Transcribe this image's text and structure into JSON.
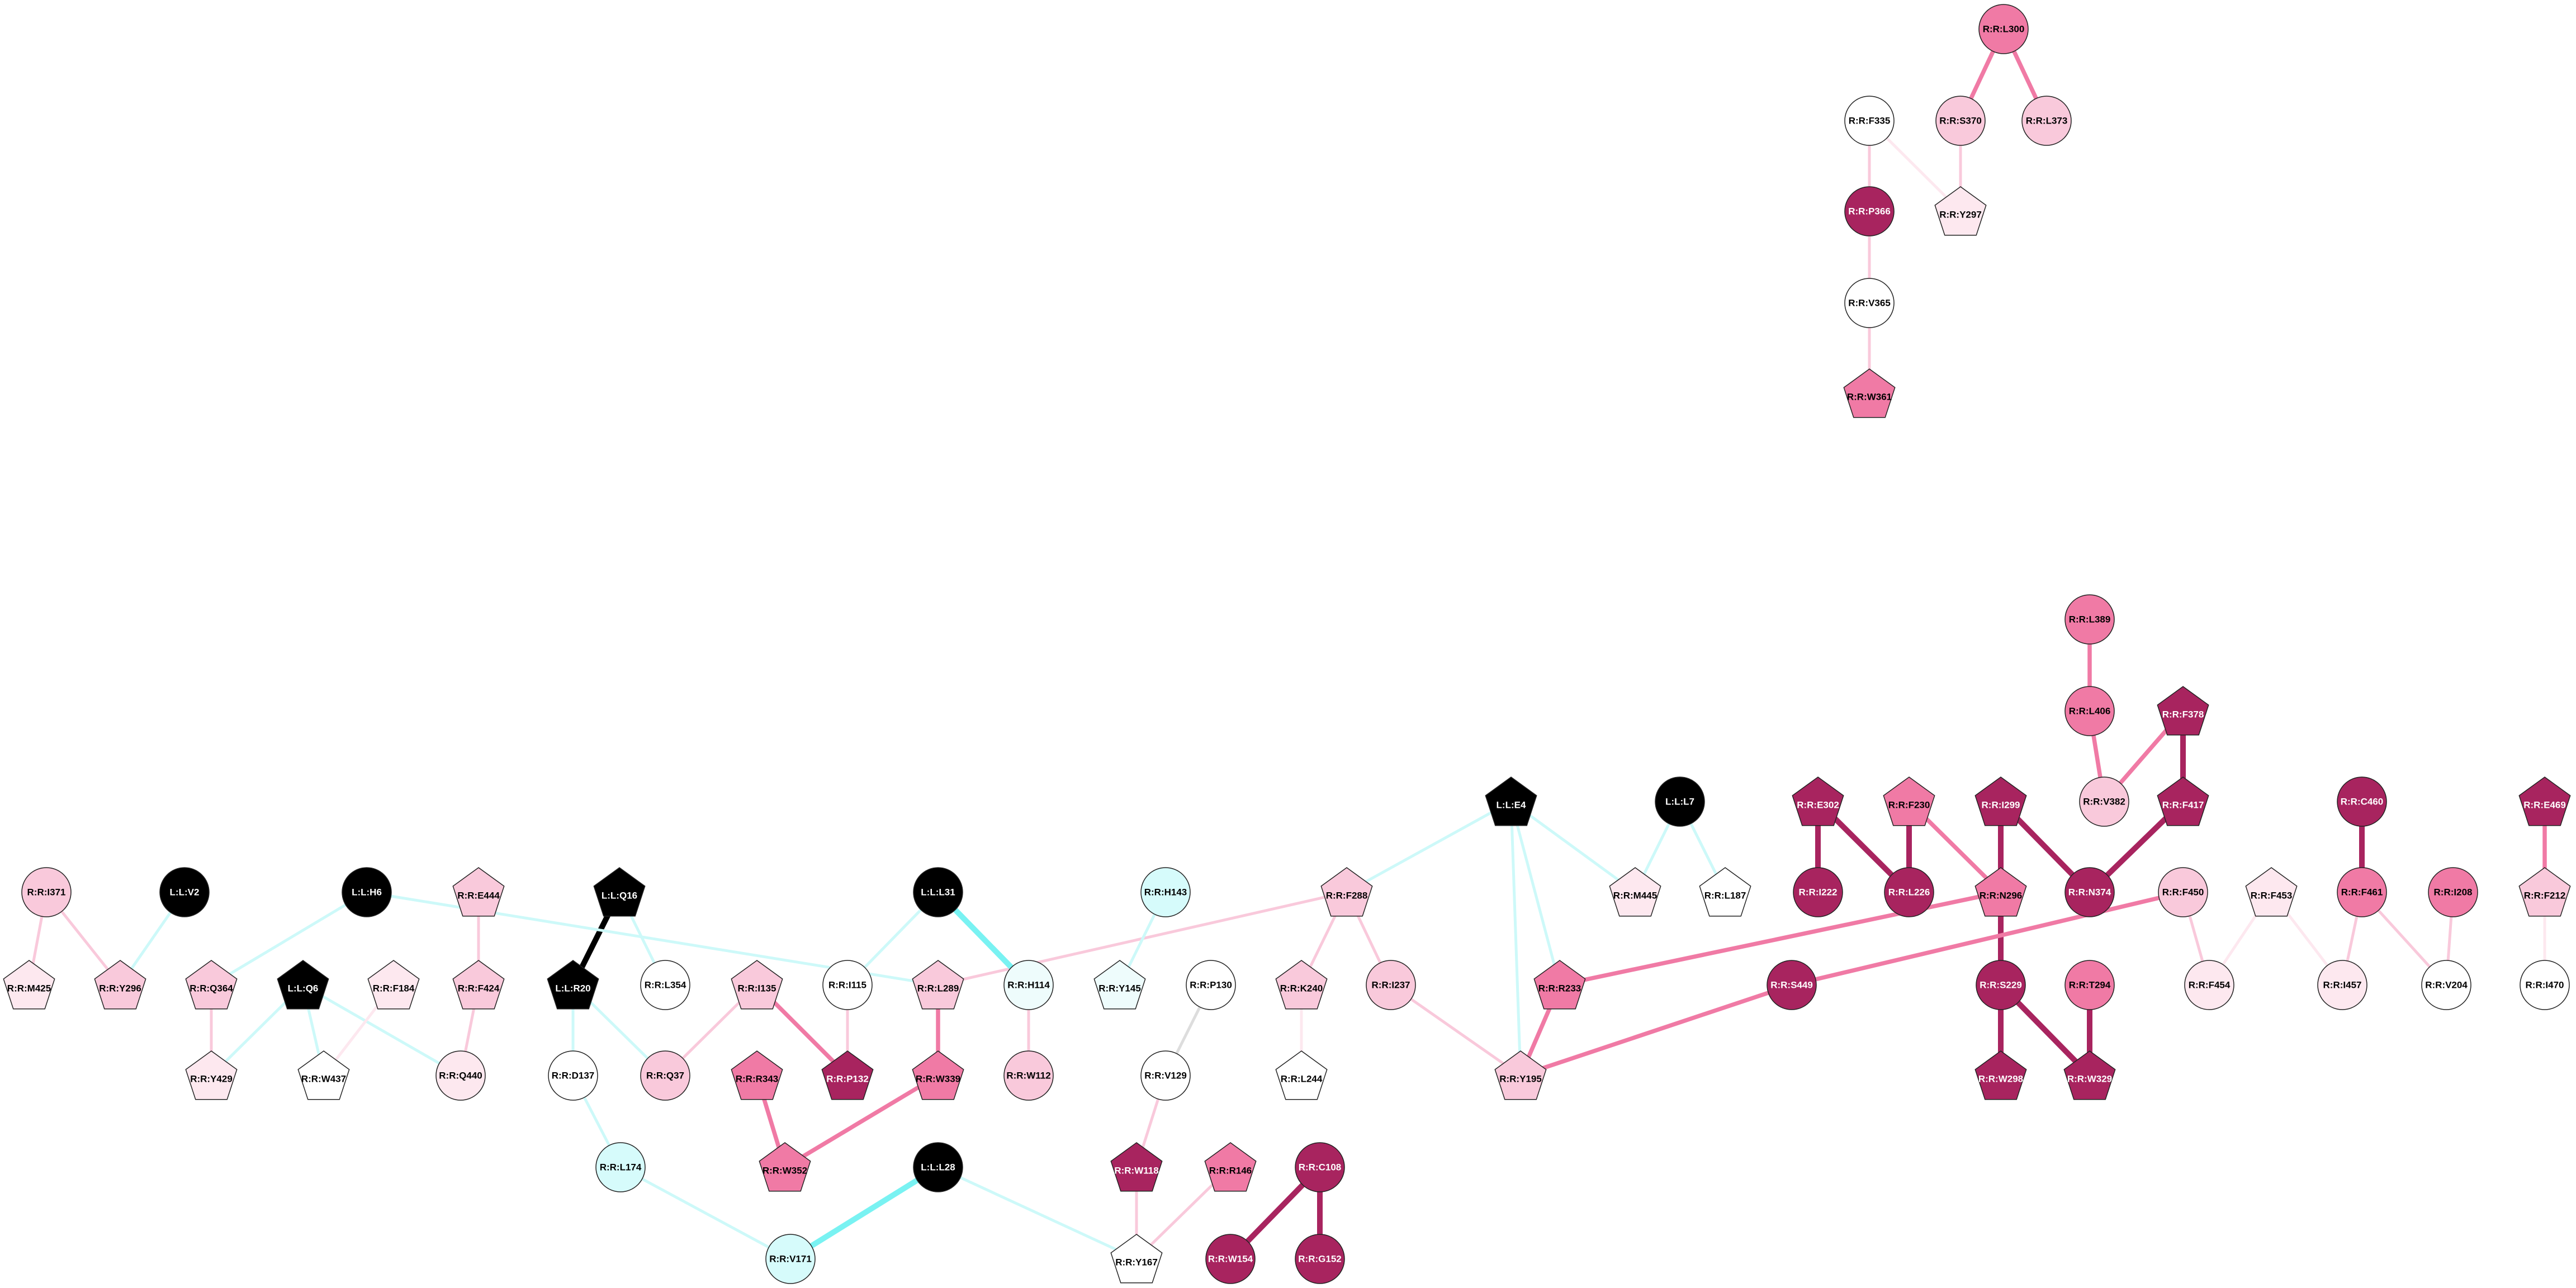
{
  "colors": {
    "black": "#000000",
    "darkmagenta": "#a8245f",
    "magenta": "#f07aa5",
    "pink": "#f9c9db",
    "lightpink": "#fde8ef",
    "white": "#ffffff",
    "cyan": "#d6fbfb",
    "lightcyan": "#eefcfc",
    "edge_cyan": "#79f2f2",
    "edge_lightcyan": "#cdf9f9",
    "edge_grey": "#dddddd"
  },
  "nodes": [
    {
      "id": "n_L300",
      "label": "R:R:L300",
      "shape": "circle",
      "fill": "magenta"
    },
    {
      "id": "n_F335",
      "label": "R:R:F335",
      "shape": "circle",
      "fill": "white"
    },
    {
      "id": "n_S370",
      "label": "R:R:S370",
      "shape": "circle",
      "fill": "pink"
    },
    {
      "id": "n_L373",
      "label": "R:R:L373",
      "shape": "circle",
      "fill": "pink"
    },
    {
      "id": "n_P366",
      "label": "R:R:P366",
      "shape": "circle",
      "fill": "darkmagenta"
    },
    {
      "id": "n_Y297",
      "label": "R:R:Y297",
      "shape": "pentagon",
      "fill": "lightpink"
    },
    {
      "id": "n_V365",
      "label": "R:R:V365",
      "shape": "circle",
      "fill": "white"
    },
    {
      "id": "n_W361",
      "label": "R:R:W361",
      "shape": "pentagon",
      "fill": "magenta"
    },
    {
      "id": "n_L389",
      "label": "R:R:L389",
      "shape": "circle",
      "fill": "magenta"
    },
    {
      "id": "n_L406",
      "label": "R:R:L406",
      "shape": "circle",
      "fill": "magenta"
    },
    {
      "id": "n_F378",
      "label": "R:R:F378",
      "shape": "pentagon",
      "fill": "darkmagenta"
    },
    {
      "id": "n_V382",
      "label": "R:R:V382",
      "shape": "circle",
      "fill": "pink"
    },
    {
      "id": "n_F417",
      "label": "R:R:F417",
      "shape": "pentagon",
      "fill": "darkmagenta"
    },
    {
      "id": "n_E4",
      "label": "L:L:E4",
      "shape": "pentagon",
      "fill": "black"
    },
    {
      "id": "n_L7",
      "label": "L:L:L7",
      "shape": "circle",
      "fill": "black"
    },
    {
      "id": "n_E302",
      "label": "R:R:E302",
      "shape": "pentagon",
      "fill": "darkmagenta"
    },
    {
      "id": "n_F230",
      "label": "R:R:F230",
      "shape": "pentagon",
      "fill": "magenta"
    },
    {
      "id": "n_I299",
      "label": "R:R:I299",
      "shape": "pentagon",
      "fill": "darkmagenta"
    },
    {
      "id": "n_C460",
      "label": "R:R:C460",
      "shape": "circle",
      "fill": "darkmagenta"
    },
    {
      "id": "n_E469",
      "label": "R:R:E469",
      "shape": "pentagon",
      "fill": "darkmagenta"
    },
    {
      "id": "n_M445",
      "label": "R:R:M445",
      "shape": "pentagon",
      "fill": "lightpink"
    },
    {
      "id": "n_L187",
      "label": "R:R:L187",
      "shape": "pentagon",
      "fill": "white"
    },
    {
      "id": "n_I222",
      "label": "R:R:I222",
      "shape": "circle",
      "fill": "darkmagenta"
    },
    {
      "id": "n_L226",
      "label": "R:R:L226",
      "shape": "circle",
      "fill": "darkmagenta"
    },
    {
      "id": "n_N296",
      "label": "R:R:N296",
      "shape": "pentagon",
      "fill": "magenta"
    },
    {
      "id": "n_N374",
      "label": "R:R:N374",
      "shape": "circle",
      "fill": "darkmagenta"
    },
    {
      "id": "n_F450",
      "label": "R:R:F450",
      "shape": "circle",
      "fill": "pink"
    },
    {
      "id": "n_F453",
      "label": "R:R:F453",
      "shape": "pentagon",
      "fill": "lightpink"
    },
    {
      "id": "n_F461",
      "label": "R:R:F461",
      "shape": "circle",
      "fill": "magenta"
    },
    {
      "id": "n_I208",
      "label": "R:R:I208",
      "shape": "circle",
      "fill": "magenta"
    },
    {
      "id": "n_F212",
      "label": "R:R:F212",
      "shape": "pentagon",
      "fill": "pink"
    },
    {
      "id": "n_I371",
      "label": "R:R:I371",
      "shape": "circle",
      "fill": "pink"
    },
    {
      "id": "n_V2",
      "label": "L:L:V2",
      "shape": "circle",
      "fill": "black"
    },
    {
      "id": "n_H6",
      "label": "L:L:H6",
      "shape": "circle",
      "fill": "black"
    },
    {
      "id": "n_E444",
      "label": "R:R:E444",
      "shape": "pentagon",
      "fill": "pink"
    },
    {
      "id": "n_Q16",
      "label": "L:L:Q16",
      "shape": "pentagon",
      "fill": "black"
    },
    {
      "id": "n_L31",
      "label": "L:L:L31",
      "shape": "circle",
      "fill": "black"
    },
    {
      "id": "n_H143",
      "label": "R:R:H143",
      "shape": "circle",
      "fill": "cyan"
    },
    {
      "id": "n_F288",
      "label": "R:R:F288",
      "shape": "pentagon",
      "fill": "pink"
    },
    {
      "id": "n_M425",
      "label": "R:R:M425",
      "shape": "pentagon",
      "fill": "lightpink"
    },
    {
      "id": "n_Y296",
      "label": "R:R:Y296",
      "shape": "pentagon",
      "fill": "pink"
    },
    {
      "id": "n_Q364",
      "label": "R:R:Q364",
      "shape": "pentagon",
      "fill": "pink"
    },
    {
      "id": "n_Q6",
      "label": "L:L:Q6",
      "shape": "pentagon",
      "fill": "black"
    },
    {
      "id": "n_F184",
      "label": "R:R:F184",
      "shape": "pentagon",
      "fill": "lightpink"
    },
    {
      "id": "n_F424",
      "label": "R:R:F424",
      "shape": "pentagon",
      "fill": "pink"
    },
    {
      "id": "n_R20",
      "label": "L:L:R20",
      "shape": "pentagon",
      "fill": "black"
    },
    {
      "id": "n_L354",
      "label": "R:R:L354",
      "shape": "circle",
      "fill": "white"
    },
    {
      "id": "n_I135",
      "label": "R:R:I135",
      "shape": "pentagon",
      "fill": "pink"
    },
    {
      "id": "n_I115",
      "label": "R:R:I115",
      "shape": "circle",
      "fill": "white"
    },
    {
      "id": "n_L289",
      "label": "R:R:L289",
      "shape": "pentagon",
      "fill": "pink"
    },
    {
      "id": "n_H114",
      "label": "R:R:H114",
      "shape": "circle",
      "fill": "lightcyan"
    },
    {
      "id": "n_Y145",
      "label": "R:R:Y145",
      "shape": "pentagon",
      "fill": "lightcyan"
    },
    {
      "id": "n_P130",
      "label": "R:R:P130",
      "shape": "circle",
      "fill": "white"
    },
    {
      "id": "n_K240",
      "label": "R:R:K240",
      "shape": "pentagon",
      "fill": "pink"
    },
    {
      "id": "n_I237",
      "label": "R:R:I237",
      "shape": "circle",
      "fill": "pink"
    },
    {
      "id": "n_R233",
      "label": "R:R:R233",
      "shape": "pentagon",
      "fill": "magenta"
    },
    {
      "id": "n_S449",
      "label": "R:R:S449",
      "shape": "circle",
      "fill": "darkmagenta"
    },
    {
      "id": "n_S229",
      "label": "R:R:S229",
      "shape": "circle",
      "fill": "darkmagenta"
    },
    {
      "id": "n_T294",
      "label": "R:R:T294",
      "shape": "circle",
      "fill": "magenta"
    },
    {
      "id": "n_F454",
      "label": "R:R:F454",
      "shape": "circle",
      "fill": "lightpink"
    },
    {
      "id": "n_I457",
      "label": "R:R:I457",
      "shape": "circle",
      "fill": "lightpink"
    },
    {
      "id": "n_V204",
      "label": "R:R:V204",
      "shape": "circle",
      "fill": "white"
    },
    {
      "id": "n_I470",
      "label": "R:R:I470",
      "shape": "circle",
      "fill": "white"
    },
    {
      "id": "n_Y429",
      "label": "R:R:Y429",
      "shape": "pentagon",
      "fill": "lightpink"
    },
    {
      "id": "n_W437",
      "label": "R:R:W437",
      "shape": "pentagon",
      "fill": "white"
    },
    {
      "id": "n_Q440",
      "label": "R:R:Q440",
      "shape": "circle",
      "fill": "lightpink"
    },
    {
      "id": "n_D137",
      "label": "R:R:D137",
      "shape": "circle",
      "fill": "white"
    },
    {
      "id": "n_Q37",
      "label": "R:R:Q37",
      "shape": "circle",
      "fill": "pink"
    },
    {
      "id": "n_R343",
      "label": "R:R:R343",
      "shape": "pentagon",
      "fill": "magenta"
    },
    {
      "id": "n_P132",
      "label": "R:R:P132",
      "shape": "pentagon",
      "fill": "darkmagenta"
    },
    {
      "id": "n_W339",
      "label": "R:R:W339",
      "shape": "pentagon",
      "fill": "magenta"
    },
    {
      "id": "n_W112",
      "label": "R:R:W112",
      "shape": "circle",
      "fill": "pink"
    },
    {
      "id": "n_V129",
      "label": "R:R:V129",
      "shape": "circle",
      "fill": "white"
    },
    {
      "id": "n_L244",
      "label": "R:R:L244",
      "shape": "pentagon",
      "fill": "white"
    },
    {
      "id": "n_Y195",
      "label": "R:R:Y195",
      "shape": "pentagon",
      "fill": "pink"
    },
    {
      "id": "n_W298",
      "label": "R:R:W298",
      "shape": "pentagon",
      "fill": "darkmagenta"
    },
    {
      "id": "n_W329",
      "label": "R:R:W329",
      "shape": "pentagon",
      "fill": "darkmagenta"
    },
    {
      "id": "n_L174",
      "label": "R:R:L174",
      "shape": "circle",
      "fill": "cyan"
    },
    {
      "id": "n_W352",
      "label": "R:R:W352",
      "shape": "pentagon",
      "fill": "magenta"
    },
    {
      "id": "n_L28",
      "label": "L:L:L28",
      "shape": "circle",
      "fill": "black"
    },
    {
      "id": "n_W118",
      "label": "R:R:W118",
      "shape": "pentagon",
      "fill": "darkmagenta"
    },
    {
      "id": "n_R146",
      "label": "R:R:R146",
      "shape": "pentagon",
      "fill": "magenta"
    },
    {
      "id": "n_C108",
      "label": "R:R:C108",
      "shape": "circle",
      "fill": "darkmagenta"
    },
    {
      "id": "n_V171",
      "label": "R:R:V171",
      "shape": "circle",
      "fill": "cyan"
    },
    {
      "id": "n_Y167",
      "label": "R:R:Y167",
      "shape": "pentagon",
      "fill": "white"
    },
    {
      "id": "n_W154",
      "label": "R:R:W154",
      "shape": "circle",
      "fill": "darkmagenta"
    },
    {
      "id": "n_G152",
      "label": "R:R:G152",
      "shape": "circle",
      "fill": "darkmagenta"
    }
  ],
  "edges": [
    {
      "source": "n_L300",
      "target": "n_S370",
      "color": "magenta",
      "weight": 3
    },
    {
      "source": "n_L300",
      "target": "n_L373",
      "color": "magenta",
      "weight": 3
    },
    {
      "source": "n_F335",
      "target": "n_Y297",
      "color": "lightpink",
      "weight": 2
    },
    {
      "source": "n_S370",
      "target": "n_Y297",
      "color": "pink",
      "weight": 2
    },
    {
      "source": "n_F335",
      "target": "n_P366",
      "color": "pink",
      "weight": 2
    },
    {
      "source": "n_P366",
      "target": "n_V365",
      "color": "pink",
      "weight": 2
    },
    {
      "source": "n_V365",
      "target": "n_W361",
      "color": "pink",
      "weight": 2
    },
    {
      "source": "n_L389",
      "target": "n_L406",
      "color": "magenta",
      "weight": 3
    },
    {
      "source": "n_L406",
      "target": "n_V382",
      "color": "magenta",
      "weight": 3
    },
    {
      "source": "n_F378",
      "target": "n_V382",
      "color": "magenta",
      "weight": 3
    },
    {
      "source": "n_F378",
      "target": "n_F417",
      "color": "darkmagenta",
      "weight": 4
    },
    {
      "source": "n_F417",
      "target": "n_N374",
      "color": "darkmagenta",
      "weight": 4
    },
    {
      "source": "n_E302",
      "target": "n_I222",
      "color": "darkmagenta",
      "weight": 4
    },
    {
      "source": "n_E302",
      "target": "n_L226",
      "color": "darkmagenta",
      "weight": 4
    },
    {
      "source": "n_F230",
      "target": "n_L226",
      "color": "darkmagenta",
      "weight": 4
    },
    {
      "source": "n_F230",
      "target": "n_N296",
      "color": "magenta",
      "weight": 3
    },
    {
      "source": "n_I299",
      "target": "n_N296",
      "color": "darkmagenta",
      "weight": 4
    },
    {
      "source": "n_I299",
      "target": "n_N374",
      "color": "darkmagenta",
      "weight": 4
    },
    {
      "source": "n_N296",
      "target": "n_S229",
      "color": "darkmagenta",
      "weight": 4
    },
    {
      "source": "n_N296",
      "target": "n_R233",
      "color": "magenta",
      "weight": 3
    },
    {
      "source": "n_S229",
      "target": "n_W298",
      "color": "darkmagenta",
      "weight": 4
    },
    {
      "source": "n_S229",
      "target": "n_W329",
      "color": "darkmagenta",
      "weight": 4
    },
    {
      "source": "n_T294",
      "target": "n_W329",
      "color": "darkmagenta",
      "weight": 4
    },
    {
      "source": "n_C460",
      "target": "n_F461",
      "color": "darkmagenta",
      "weight": 4
    },
    {
      "source": "n_E469",
      "target": "n_F212",
      "color": "magenta",
      "weight": 3
    },
    {
      "source": "n_F212",
      "target": "n_I470",
      "color": "lightpink",
      "weight": 2
    },
    {
      "source": "n_I208",
      "target": "n_V204",
      "color": "pink",
      "weight": 2
    },
    {
      "source": "n_F461",
      "target": "n_V204",
      "color": "pink",
      "weight": 2
    },
    {
      "source": "n_F461",
      "target": "n_I457",
      "color": "pink",
      "weight": 2
    },
    {
      "source": "n_F453",
      "target": "n_I457",
      "color": "lightpink",
      "weight": 2
    },
    {
      "source": "n_F453",
      "target": "n_F454",
      "color": "lightpink",
      "weight": 2
    },
    {
      "source": "n_F450",
      "target": "n_F454",
      "color": "pink",
      "weight": 2
    },
    {
      "source": "n_F450",
      "target": "n_S449",
      "color": "magenta",
      "weight": 3
    },
    {
      "source": "n_S449",
      "target": "n_Y195",
      "color": "magenta",
      "weight": 3
    },
    {
      "source": "n_R233",
      "target": "n_Y195",
      "color": "magenta",
      "weight": 3
    },
    {
      "source": "n_I237",
      "target": "n_Y195",
      "color": "pink",
      "weight": 2
    },
    {
      "source": "n_E4",
      "target": "n_Y195",
      "color": "edge_lightcyan",
      "weight": 2
    },
    {
      "source": "n_E4",
      "target": "n_R233",
      "color": "edge_lightcyan",
      "weight": 2
    },
    {
      "source": "n_E4",
      "target": "n_M445",
      "color": "edge_lightcyan",
      "weight": 2
    },
    {
      "source": "n_E4",
      "target": "n_F288",
      "color": "edge_lightcyan",
      "weight": 2
    },
    {
      "source": "n_L7",
      "target": "n_M445",
      "color": "edge_lightcyan",
      "weight": 2
    },
    {
      "source": "n_L7",
      "target": "n_L187",
      "color": "edge_lightcyan",
      "weight": 2
    },
    {
      "source": "n_F288",
      "target": "n_K240",
      "color": "pink",
      "weight": 2
    },
    {
      "source": "n_F288",
      "target": "n_I237",
      "color": "pink",
      "weight": 2
    },
    {
      "source": "n_F288",
      "target": "n_L289",
      "color": "pink",
      "weight": 2
    },
    {
      "source": "n_K240",
      "target": "n_L244",
      "color": "lightpink",
      "weight": 2
    },
    {
      "source": "n_H143",
      "target": "n_Y145",
      "color": "edge_lightcyan",
      "weight": 2
    },
    {
      "source": "n_P130",
      "target": "n_V129",
      "color": "edge_grey",
      "weight": 2
    },
    {
      "source": "n_V129",
      "target": "n_W118",
      "color": "pink",
      "weight": 2
    },
    {
      "source": "n_W118",
      "target": "n_Y167",
      "color": "pink",
      "weight": 2
    },
    {
      "source": "n_R146",
      "target": "n_Y167",
      "color": "pink",
      "weight": 2
    },
    {
      "source": "n_C108",
      "target": "n_W154",
      "color": "darkmagenta",
      "weight": 4
    },
    {
      "source": "n_C108",
      "target": "n_G152",
      "color": "darkmagenta",
      "weight": 4
    },
    {
      "source": "n_L28",
      "target": "n_V171",
      "color": "edge_cyan",
      "weight": 4
    },
    {
      "source": "n_L28",
      "target": "n_Y167",
      "color": "edge_lightcyan",
      "weight": 2
    },
    {
      "source": "n_L174",
      "target": "n_V171",
      "color": "edge_lightcyan",
      "weight": 2
    },
    {
      "source": "n_D137",
      "target": "n_L174",
      "color": "edge_lightcyan",
      "weight": 2
    },
    {
      "source": "n_R20",
      "target": "n_D137",
      "color": "edge_lightcyan",
      "weight": 2
    },
    {
      "source": "n_R20",
      "target": "n_Q37",
      "color": "edge_lightcyan",
      "weight": 2
    },
    {
      "source": "n_Q16",
      "target": "n_R20",
      "color": "black",
      "weight": 4
    },
    {
      "source": "n_Q16",
      "target": "n_L354",
      "color": "edge_lightcyan",
      "weight": 2
    },
    {
      "source": "n_I135",
      "target": "n_Q37",
      "color": "pink",
      "weight": 2
    },
    {
      "source": "n_I135",
      "target": "n_P132",
      "color": "magenta",
      "weight": 3
    },
    {
      "source": "n_I115",
      "target": "n_P132",
      "color": "pink",
      "weight": 2
    },
    {
      "source": "n_R343",
      "target": "n_W352",
      "color": "magenta",
      "weight": 3
    },
    {
      "source": "n_W339",
      "target": "n_W352",
      "color": "magenta",
      "weight": 3
    },
    {
      "source": "n_L289",
      "target": "n_W339",
      "color": "magenta",
      "weight": 3
    },
    {
      "source": "n_L31",
      "target": "n_I115",
      "color": "edge_lightcyan",
      "weight": 2
    },
    {
      "source": "n_L31",
      "target": "n_H114",
      "color": "edge_cyan",
      "weight": 4
    },
    {
      "source": "n_H114",
      "target": "n_W112",
      "color": "pink",
      "weight": 2
    },
    {
      "source": "n_H6",
      "target": "n_L289",
      "color": "edge_lightcyan",
      "weight": 2
    },
    {
      "source": "n_H6",
      "target": "n_Q364",
      "color": "edge_lightcyan",
      "weight": 2
    },
    {
      "source": "n_V2",
      "target": "n_Y296",
      "color": "edge_lightcyan",
      "weight": 2
    },
    {
      "source": "n_I371",
      "target": "n_M425",
      "color": "pink",
      "weight": 2
    },
    {
      "source": "n_I371",
      "target": "n_Y296",
      "color": "pink",
      "weight": 2
    },
    {
      "source": "n_Q364",
      "target": "n_Y429",
      "color": "pink",
      "weight": 2
    },
    {
      "source": "n_Q6",
      "target": "n_Y429",
      "color": "edge_lightcyan",
      "weight": 2
    },
    {
      "source": "n_Q6",
      "target": "n_W437",
      "color": "edge_lightcyan",
      "weight": 2
    },
    {
      "source": "n_Q6",
      "target": "n_Q440",
      "color": "edge_lightcyan",
      "weight": 2
    },
    {
      "source": "n_F184",
      "target": "n_W437",
      "color": "lightpink",
      "weight": 2
    },
    {
      "source": "n_E444",
      "target": "n_F424",
      "color": "pink",
      "weight": 2
    },
    {
      "source": "n_F424",
      "target": "n_Q440",
      "color": "pink",
      "weight": 2
    }
  ]
}
